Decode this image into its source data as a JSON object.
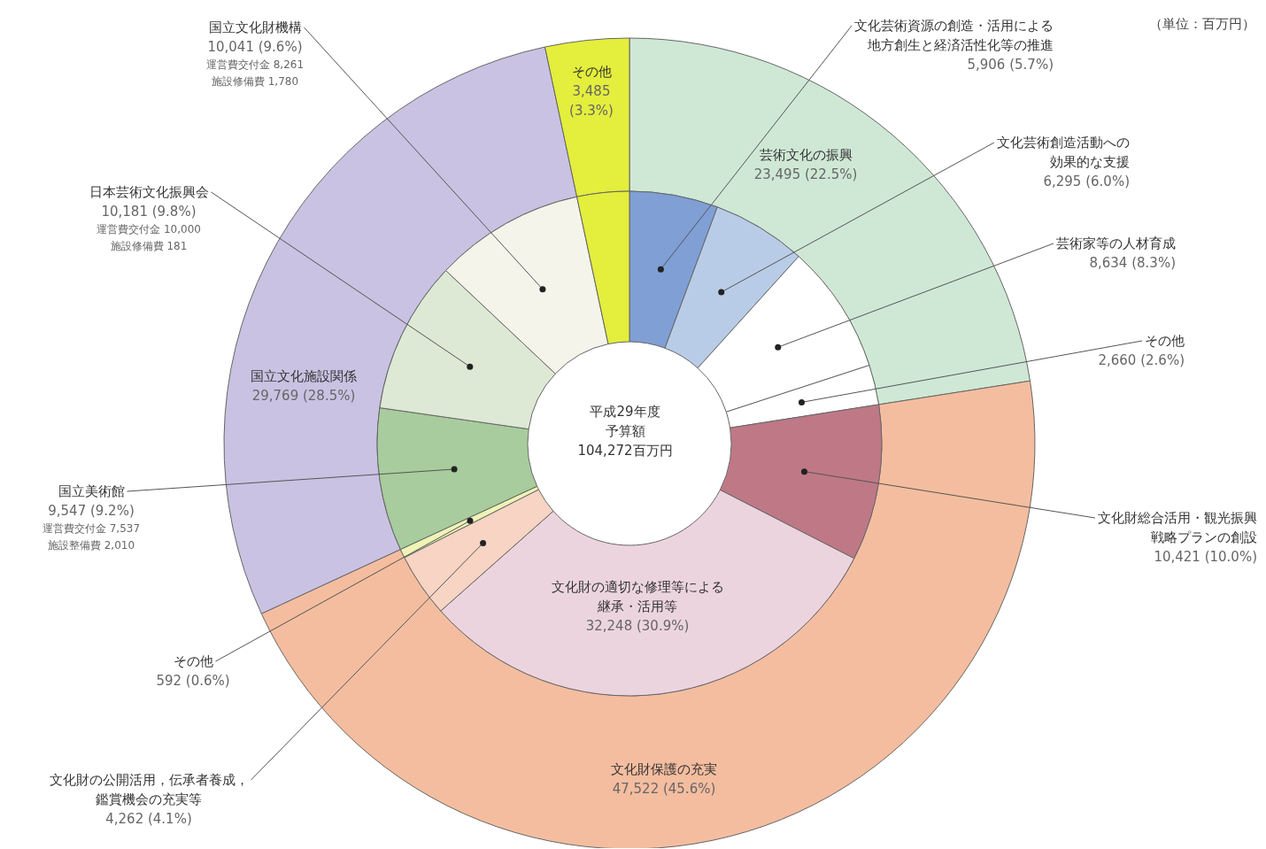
{
  "chart_data": [
    {
      "type": "donut",
      "title": "平成29年度予算額",
      "subtitle": "104,272百万円",
      "annotations": [
        "（単位：百万円）"
      ],
      "categories": [
        "芸術文化の振興",
        "文化財保護の充実",
        "国立文化施設関係",
        "その他"
      ],
      "values": [
        23495,
        47522,
        29769,
        3485
      ],
      "colors": [
        "#cfe8d5",
        "#f4bd9f",
        "#c9c2e2",
        "#e4ee3c"
      ],
      "value_labels": [
        "23,495 (22.5%)",
        "47,522 (45.6%)",
        "29,769 (28.5%)",
        "3,485 (3.3%)"
      ]
    },
    {
      "type": "donut",
      "categories": [
        "文化芸術資源の創造・活用による地方創生と経済活性化等の推進",
        "文化芸術創造活動への効果的な支援",
        "芸術家等の人材育成",
        "その他",
        "文化財総合活用・観光振興戦略プランの創設",
        "文化財の適切な修理等による継承・活用等",
        "文化財の公開活用，伝承者養成，鑑賞機会の充実等",
        "その他",
        "国立美術館",
        "日本芸術文化振興会",
        "国立文化財機構",
        null
      ],
      "values": [
        5906,
        6295,
        8634,
        2660,
        10421,
        32248,
        4262,
        592,
        9547,
        10181,
        10041,
        3485
      ],
      "colors": [
        "#7f9fd5",
        "#b9cce7",
        "#ffffff",
        "#ffffff",
        "#bf7886",
        "#ecd4de",
        "#f7d4c3",
        "#eef4b6",
        "#a8cc9d",
        "#dde9d5",
        "#f4f4ea",
        "#e4ee3c"
      ],
      "value_labels": [
        "5,906 (5.7%)",
        "6,295 (6.0%)",
        "8,634 (8.3%)",
        "2,660 (2.6%)",
        "10,421 (10.0%)",
        "32,248 (30.9%)",
        "4,262 (4.1%)",
        "592 (0.6%)",
        "9,547 (9.2%)",
        "10,181 (9.8%)",
        "10,041 (9.6%)",
        null
      ],
      "annotations": [
        {
          "text": "運営費交付金 7,537",
          "x": "国立美術館"
        },
        {
          "text": "施設整備費 2,010",
          "x": "国立美術館"
        },
        {
          "text": "運営費交付金 10,000",
          "x": "日本芸術文化振興会"
        },
        {
          "text": "施設修備費 181",
          "x": "日本芸術文化振興会"
        },
        {
          "text": "運営費交付金 8,261",
          "x": "国立文化財機構"
        },
        {
          "text": "施設修備費 1,780",
          "x": "国立文化財機構"
        }
      ]
    }
  ]
}
